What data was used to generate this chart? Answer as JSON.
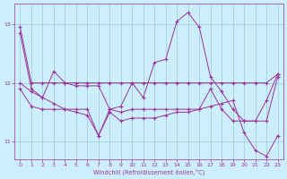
{
  "xlabel": "Windchill (Refroidissement éolien,°C)",
  "background_color": "#cceeff",
  "grid_color": "#99cccc",
  "line_color": "#993399",
  "xlim": [
    -0.5,
    23.5
  ],
  "ylim": [
    10.7,
    13.35
  ],
  "yticks": [
    11,
    12,
    13
  ],
  "xticks": [
    0,
    1,
    2,
    3,
    4,
    5,
    6,
    7,
    8,
    9,
    10,
    11,
    12,
    13,
    14,
    15,
    16,
    17,
    18,
    19,
    20,
    21,
    22,
    23
  ],
  "series": [
    {
      "x": [
        0,
        1,
        2,
        3,
        4,
        5,
        6,
        7,
        8,
        9,
        10,
        11,
        12,
        13,
        14,
        15,
        16,
        17,
        18,
        19,
        20,
        21,
        22,
        23
      ],
      "y": [
        12.95,
        12.0,
        12.0,
        12.0,
        12.0,
        12.0,
        12.0,
        12.0,
        12.0,
        12.0,
        12.0,
        12.0,
        12.0,
        12.0,
        12.0,
        12.0,
        12.0,
        12.0,
        12.0,
        12.0,
        12.0,
        12.0,
        12.0,
        12.15
      ]
    },
    {
      "x": [
        0,
        1,
        2,
        3,
        4,
        5,
        6,
        7,
        8,
        9,
        10,
        11,
        12,
        13,
        14,
        15,
        16,
        17,
        18,
        19,
        20,
        21,
        22,
        23
      ],
      "y": [
        12.0,
        11.85,
        11.75,
        12.2,
        12.0,
        11.95,
        11.95,
        11.95,
        11.55,
        11.6,
        12.0,
        11.75,
        12.35,
        12.4,
        13.05,
        13.2,
        12.95,
        12.1,
        11.85,
        11.55,
        11.35,
        11.35,
        11.7,
        12.15
      ]
    },
    {
      "x": [
        0,
        1,
        2,
        3,
        4,
        5,
        6,
        7,
        8,
        9,
        10,
        11,
        12,
        13,
        14,
        15,
        16,
        17,
        18,
        19,
        20,
        21,
        22,
        23
      ],
      "y": [
        11.9,
        11.6,
        11.55,
        11.55,
        11.55,
        11.55,
        11.55,
        11.1,
        11.55,
        11.5,
        11.55,
        11.55,
        11.55,
        11.55,
        11.55,
        11.55,
        11.55,
        11.9,
        11.55,
        11.35,
        11.35,
        11.35,
        11.35,
        12.1
      ]
    },
    {
      "x": [
        0,
        1,
        2,
        3,
        4,
        5,
        6,
        7,
        8,
        9,
        10,
        11,
        12,
        13,
        14,
        15,
        16,
        17,
        18,
        19,
        20,
        21,
        22,
        23
      ],
      "y": [
        12.85,
        11.9,
        11.75,
        11.65,
        11.55,
        11.5,
        11.45,
        11.1,
        11.5,
        11.35,
        11.4,
        11.4,
        11.4,
        11.45,
        11.5,
        11.5,
        11.55,
        11.6,
        11.65,
        11.7,
        11.15,
        10.85,
        10.75,
        11.1
      ]
    }
  ]
}
